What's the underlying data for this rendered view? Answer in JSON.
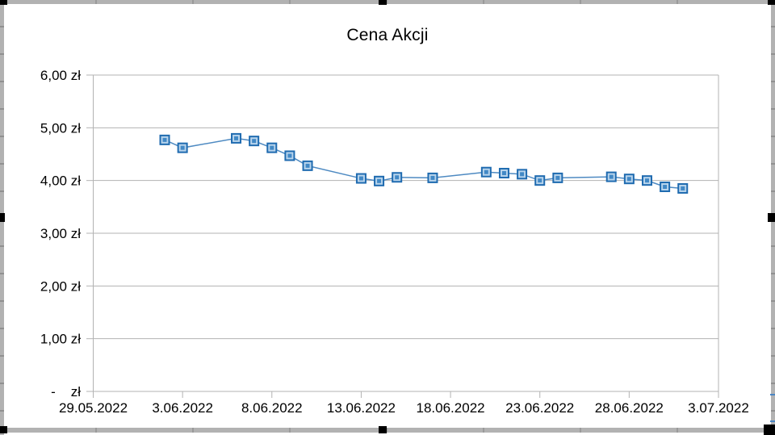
{
  "chart": {
    "title": "Cena Akcji"
  },
  "chart_data": {
    "type": "line",
    "title": "Cena Akcji",
    "xlabel": "",
    "ylabel": "",
    "legend": "none",
    "grid": "horizontal",
    "currency": "zł",
    "ylim": [
      0,
      6
    ],
    "y_ticks": [
      {
        "label": "6,00 zł",
        "value": 6
      },
      {
        "label": "5,00 zł",
        "value": 5
      },
      {
        "label": "4,00 zł",
        "value": 4
      },
      {
        "label": "3,00 zł",
        "value": 3
      },
      {
        "label": "2,00 zł",
        "value": 2
      },
      {
        "label": "1,00 zł",
        "value": 1
      },
      {
        "label": "-    zł",
        "value": 0
      }
    ],
    "x_range": {
      "start": "29.05.2022",
      "end": "3.07.2022"
    },
    "x_ticks": [
      {
        "label": "29.05.2022",
        "date": "29.05.2022"
      },
      {
        "label": "3.06.2022",
        "date": "3.06.2022"
      },
      {
        "label": "8.06.2022",
        "date": "8.06.2022"
      },
      {
        "label": "13.06.2022",
        "date": "13.06.2022"
      },
      {
        "label": "18.06.2022",
        "date": "18.06.2022"
      },
      {
        "label": "23.06.2022",
        "date": "23.06.2022"
      },
      {
        "label": "28.06.2022",
        "date": "28.06.2022"
      },
      {
        "label": "3.07.2022",
        "date": "3.07.2022"
      }
    ],
    "series": [
      {
        "name": "Cena Akcji",
        "points": [
          {
            "date": "2.06.2022",
            "value": 4.77
          },
          {
            "date": "3.06.2022",
            "value": 4.62
          },
          {
            "date": "6.06.2022",
            "value": 4.8
          },
          {
            "date": "7.06.2022",
            "value": 4.75
          },
          {
            "date": "8.06.2022",
            "value": 4.62
          },
          {
            "date": "9.06.2022",
            "value": 4.47
          },
          {
            "date": "10.06.2022",
            "value": 4.28
          },
          {
            "date": "13.06.2022",
            "value": 4.04
          },
          {
            "date": "14.06.2022",
            "value": 3.99
          },
          {
            "date": "15.06.2022",
            "value": 4.06
          },
          {
            "date": "17.06.2022",
            "value": 4.05
          },
          {
            "date": "20.06.2022",
            "value": 4.16
          },
          {
            "date": "21.06.2022",
            "value": 4.14
          },
          {
            "date": "22.06.2022",
            "value": 4.12
          },
          {
            "date": "23.06.2022",
            "value": 4.0
          },
          {
            "date": "24.06.2022",
            "value": 4.05
          },
          {
            "date": "27.06.2022",
            "value": 4.07
          },
          {
            "date": "28.06.2022",
            "value": 4.03
          },
          {
            "date": "29.06.2022",
            "value": 4.0
          },
          {
            "date": "30.06.2022",
            "value": 3.88
          },
          {
            "date": "1.07.2022",
            "value": 3.85
          }
        ]
      }
    ],
    "colors": {
      "grid": "#b3b3b3",
      "axis": "#b3b3b3",
      "series_line": "#4e8ac2",
      "marker_border": "#1f6bb0",
      "marker_ring": "#b8d4ec",
      "marker_core": "#4289c6",
      "label_text": "#000000"
    }
  }
}
